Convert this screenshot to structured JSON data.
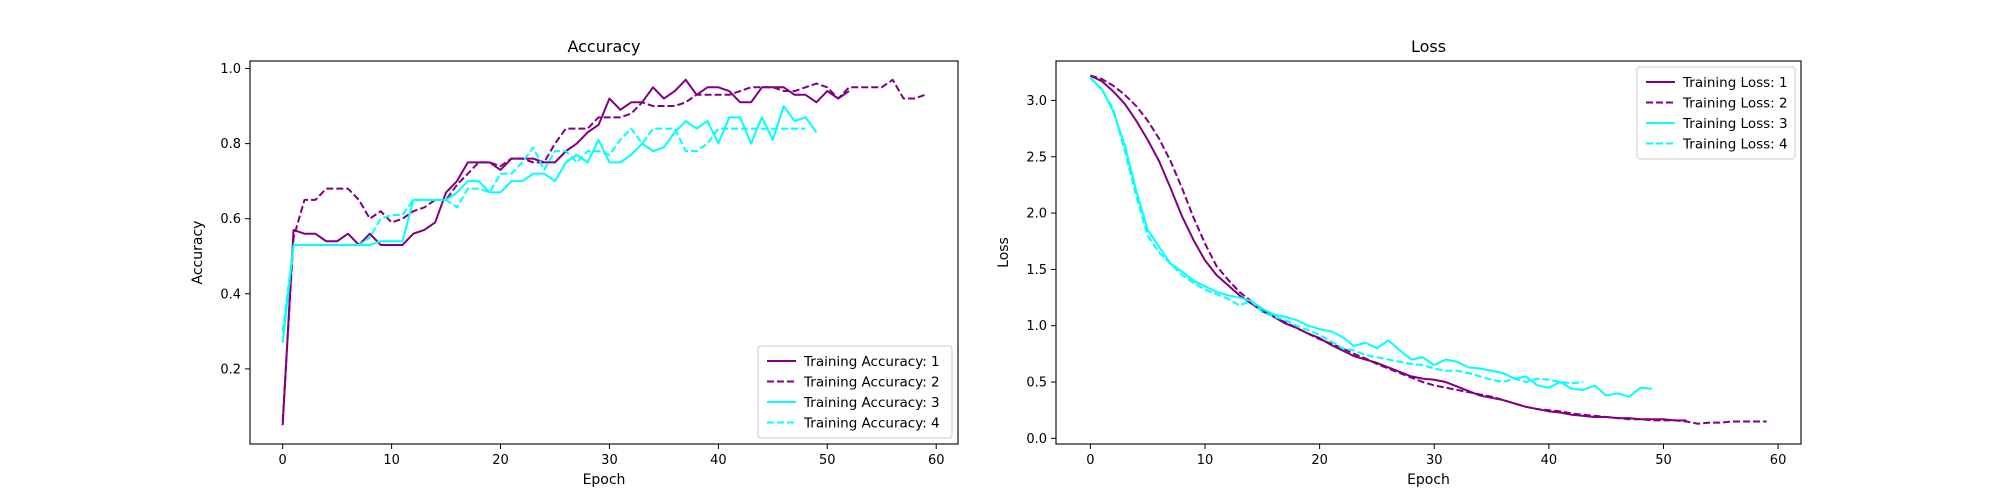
{
  "chart_data": [
    {
      "type": "line",
      "title": "Accuracy",
      "xlabel": "Epoch",
      "ylabel": "Accuracy",
      "xlim": [
        -3,
        62
      ],
      "ylim": [
        0.0,
        1.02
      ],
      "xticks": [
        0,
        10,
        20,
        30,
        40,
        50,
        60
      ],
      "yticks": [
        0.2,
        0.4,
        0.6,
        0.8,
        1.0
      ],
      "grid": false,
      "legend_position": "lower-right",
      "series": [
        {
          "name": "Training Accuracy: 1",
          "color": "#800080",
          "dash": "solid",
          "x": [
            0,
            1,
            2,
            3,
            4,
            5,
            6,
            7,
            8,
            9,
            10,
            11,
            12,
            13,
            14,
            15,
            16,
            17,
            18,
            19,
            20,
            21,
            22,
            23,
            24,
            25,
            26,
            27,
            28,
            29,
            30,
            31,
            32,
            33,
            34,
            35,
            36,
            37,
            38,
            39,
            40,
            41,
            42,
            43,
            44,
            45,
            46,
            47,
            48,
            49,
            50,
            51,
            52
          ],
          "y": [
            0.05,
            0.57,
            0.56,
            0.56,
            0.54,
            0.54,
            0.56,
            0.53,
            0.56,
            0.53,
            0.53,
            0.53,
            0.56,
            0.57,
            0.59,
            0.67,
            0.7,
            0.75,
            0.75,
            0.75,
            0.73,
            0.76,
            0.76,
            0.76,
            0.75,
            0.75,
            0.78,
            0.8,
            0.83,
            0.85,
            0.92,
            0.89,
            0.91,
            0.91,
            0.95,
            0.92,
            0.94,
            0.97,
            0.93,
            0.95,
            0.95,
            0.94,
            0.91,
            0.91,
            0.95,
            0.95,
            0.95,
            0.93,
            0.93,
            0.91,
            0.94,
            0.92,
            0.94
          ]
        },
        {
          "name": "Training Accuracy: 2",
          "color": "#800080",
          "dash": "dashed",
          "x": [
            0,
            1,
            2,
            3,
            4,
            5,
            6,
            7,
            8,
            9,
            10,
            11,
            12,
            13,
            14,
            15,
            16,
            17,
            18,
            19,
            20,
            21,
            22,
            23,
            24,
            25,
            26,
            27,
            28,
            29,
            30,
            31,
            32,
            33,
            34,
            35,
            36,
            37,
            38,
            39,
            40,
            41,
            42,
            43,
            44,
            45,
            46,
            47,
            48,
            49,
            50,
            51,
            52,
            53,
            54,
            55,
            56,
            57,
            58,
            59
          ],
          "y": [
            0.06,
            0.55,
            0.65,
            0.65,
            0.68,
            0.68,
            0.68,
            0.65,
            0.6,
            0.62,
            0.59,
            0.6,
            0.62,
            0.63,
            0.65,
            0.65,
            0.69,
            0.72,
            0.75,
            0.75,
            0.74,
            0.76,
            0.76,
            0.75,
            0.75,
            0.8,
            0.84,
            0.84,
            0.84,
            0.87,
            0.87,
            0.87,
            0.88,
            0.91,
            0.9,
            0.9,
            0.9,
            0.91,
            0.93,
            0.93,
            0.93,
            0.93,
            0.94,
            0.95,
            0.95,
            0.95,
            0.94,
            0.94,
            0.95,
            0.96,
            0.95,
            0.92,
            0.95,
            0.95,
            0.95,
            0.95,
            0.97,
            0.92,
            0.92,
            0.93
          ]
        },
        {
          "name": "Training Accuracy: 3",
          "color": "#00FFFF",
          "dash": "solid",
          "x": [
            0,
            1,
            2,
            3,
            4,
            5,
            6,
            7,
            8,
            9,
            10,
            11,
            12,
            13,
            14,
            15,
            16,
            17,
            18,
            19,
            20,
            21,
            22,
            23,
            24,
            25,
            26,
            27,
            28,
            29,
            30,
            31,
            32,
            33,
            34,
            35,
            36,
            37,
            38,
            39,
            40,
            41,
            42,
            43,
            44,
            45,
            46,
            47,
            48,
            49
          ],
          "y": [
            0.27,
            0.53,
            0.53,
            0.53,
            0.53,
            0.53,
            0.53,
            0.53,
            0.53,
            0.54,
            0.54,
            0.54,
            0.65,
            0.65,
            0.65,
            0.65,
            0.67,
            0.7,
            0.7,
            0.67,
            0.67,
            0.7,
            0.7,
            0.72,
            0.72,
            0.7,
            0.75,
            0.77,
            0.75,
            0.81,
            0.75,
            0.75,
            0.77,
            0.8,
            0.78,
            0.79,
            0.83,
            0.86,
            0.84,
            0.86,
            0.8,
            0.87,
            0.87,
            0.8,
            0.87,
            0.81,
            0.9,
            0.86,
            0.87,
            0.83
          ]
        },
        {
          "name": "Training Accuracy: 4",
          "color": "#00FFFF",
          "dash": "dashed",
          "x": [
            0,
            1,
            2,
            3,
            4,
            5,
            6,
            7,
            8,
            9,
            10,
            11,
            12,
            13,
            14,
            15,
            16,
            17,
            18,
            19,
            20,
            21,
            22,
            23,
            24,
            25,
            26,
            27,
            28,
            29,
            30,
            31,
            32,
            33,
            34,
            35,
            36,
            37,
            38,
            39,
            40,
            41,
            42,
            43,
            44,
            45,
            46,
            47,
            48
          ],
          "y": [
            0.3,
            0.53,
            0.53,
            0.53,
            0.53,
            0.53,
            0.53,
            0.53,
            0.55,
            0.6,
            0.61,
            0.61,
            0.65,
            0.65,
            0.65,
            0.65,
            0.63,
            0.68,
            0.68,
            0.67,
            0.72,
            0.72,
            0.75,
            0.79,
            0.73,
            0.78,
            0.78,
            0.75,
            0.78,
            0.78,
            0.77,
            0.81,
            0.84,
            0.8,
            0.84,
            0.84,
            0.84,
            0.78,
            0.78,
            0.8,
            0.84,
            0.84,
            0.84,
            0.84,
            0.84,
            0.84,
            0.84,
            0.84,
            0.84
          ]
        }
      ]
    },
    {
      "type": "line",
      "title": "Loss",
      "xlabel": "Epoch",
      "ylabel": "Loss",
      "xlim": [
        -3,
        62
      ],
      "ylim": [
        -0.05,
        3.35
      ],
      "xticks": [
        0,
        10,
        20,
        30,
        40,
        50,
        60
      ],
      "yticks": [
        0.0,
        0.5,
        1.0,
        1.5,
        2.0,
        2.5,
        3.0
      ],
      "grid": false,
      "legend_position": "upper-right",
      "series": [
        {
          "name": "Training Loss: 1",
          "color": "#800080",
          "dash": "solid",
          "x": [
            0,
            1,
            2,
            3,
            4,
            5,
            6,
            7,
            8,
            9,
            10,
            11,
            12,
            13,
            14,
            15,
            16,
            17,
            18,
            19,
            20,
            21,
            22,
            23,
            24,
            25,
            26,
            27,
            28,
            29,
            30,
            31,
            32,
            33,
            34,
            35,
            36,
            37,
            38,
            39,
            40,
            41,
            42,
            43,
            44,
            45,
            46,
            47,
            48,
            49,
            50,
            51,
            52
          ],
          "y": [
            3.22,
            3.17,
            3.08,
            2.97,
            2.82,
            2.65,
            2.46,
            2.22,
            1.97,
            1.76,
            1.58,
            1.45,
            1.36,
            1.27,
            1.2,
            1.13,
            1.08,
            1.02,
            0.98,
            0.93,
            0.89,
            0.83,
            0.78,
            0.73,
            0.7,
            0.67,
            0.63,
            0.59,
            0.55,
            0.53,
            0.52,
            0.5,
            0.46,
            0.42,
            0.38,
            0.36,
            0.34,
            0.31,
            0.28,
            0.26,
            0.24,
            0.23,
            0.21,
            0.2,
            0.19,
            0.19,
            0.18,
            0.18,
            0.17,
            0.17,
            0.17,
            0.16,
            0.16
          ]
        },
        {
          "name": "Training Loss: 2",
          "color": "#800080",
          "dash": "dashed",
          "x": [
            0,
            1,
            2,
            3,
            4,
            5,
            6,
            7,
            8,
            9,
            10,
            11,
            12,
            13,
            14,
            15,
            16,
            17,
            18,
            19,
            20,
            21,
            22,
            23,
            24,
            25,
            26,
            27,
            28,
            29,
            30,
            31,
            32,
            33,
            34,
            35,
            36,
            37,
            38,
            39,
            40,
            41,
            42,
            43,
            44,
            45,
            46,
            47,
            48,
            49,
            50,
            51,
            52,
            53,
            54,
            55,
            56,
            57,
            58,
            59
          ],
          "y": [
            3.22,
            3.19,
            3.13,
            3.05,
            2.95,
            2.82,
            2.66,
            2.46,
            2.22,
            1.96,
            1.73,
            1.53,
            1.41,
            1.3,
            1.22,
            1.15,
            1.08,
            1.03,
            0.98,
            0.93,
            0.88,
            0.84,
            0.8,
            0.75,
            0.71,
            0.66,
            0.62,
            0.58,
            0.54,
            0.5,
            0.47,
            0.45,
            0.43,
            0.41,
            0.39,
            0.37,
            0.34,
            0.31,
            0.28,
            0.26,
            0.25,
            0.24,
            0.22,
            0.21,
            0.2,
            0.19,
            0.18,
            0.17,
            0.17,
            0.16,
            0.16,
            0.16,
            0.15,
            0.13,
            0.14,
            0.14,
            0.15,
            0.15,
            0.15,
            0.15
          ]
        },
        {
          "name": "Training Loss: 3",
          "color": "#00FFFF",
          "dash": "solid",
          "x": [
            0,
            1,
            2,
            3,
            4,
            5,
            6,
            7,
            8,
            9,
            10,
            11,
            12,
            13,
            14,
            15,
            16,
            17,
            18,
            19,
            20,
            21,
            22,
            23,
            24,
            25,
            26,
            27,
            28,
            29,
            30,
            31,
            32,
            33,
            34,
            35,
            36,
            37,
            38,
            39,
            40,
            41,
            42,
            43,
            44,
            45,
            46,
            47,
            48,
            49
          ],
          "y": [
            3.2,
            3.1,
            2.9,
            2.6,
            2.2,
            1.85,
            1.7,
            1.55,
            1.48,
            1.4,
            1.35,
            1.3,
            1.27,
            1.25,
            1.22,
            1.15,
            1.1,
            1.08,
            1.05,
            1.0,
            0.97,
            0.95,
            0.9,
            0.82,
            0.85,
            0.8,
            0.87,
            0.78,
            0.7,
            0.72,
            0.65,
            0.7,
            0.68,
            0.63,
            0.62,
            0.6,
            0.58,
            0.53,
            0.55,
            0.47,
            0.45,
            0.5,
            0.44,
            0.43,
            0.47,
            0.38,
            0.4,
            0.37,
            0.45,
            0.44
          ]
        },
        {
          "name": "Training Loss: 4",
          "color": "#00FFFF",
          "dash": "dashed",
          "x": [
            0,
            1,
            2,
            3,
            4,
            5,
            6,
            7,
            8,
            9,
            10,
            11,
            12,
            13,
            14,
            15,
            16,
            17,
            18,
            19,
            20,
            21,
            22,
            23,
            24,
            25,
            26,
            27,
            28,
            29,
            30,
            31,
            32,
            33,
            34,
            35,
            36,
            37,
            38,
            39,
            40,
            41,
            42,
            43
          ],
          "y": [
            3.2,
            3.1,
            2.92,
            2.55,
            2.15,
            1.8,
            1.65,
            1.55,
            1.45,
            1.38,
            1.32,
            1.28,
            1.24,
            1.18,
            1.22,
            1.12,
            1.08,
            1.05,
            1.0,
            0.96,
            0.92,
            0.86,
            0.8,
            0.78,
            0.74,
            0.72,
            0.7,
            0.68,
            0.66,
            0.65,
            0.62,
            0.6,
            0.6,
            0.58,
            0.55,
            0.52,
            0.5,
            0.53,
            0.5,
            0.53,
            0.52,
            0.5,
            0.49,
            0.5
          ]
        }
      ]
    }
  ]
}
